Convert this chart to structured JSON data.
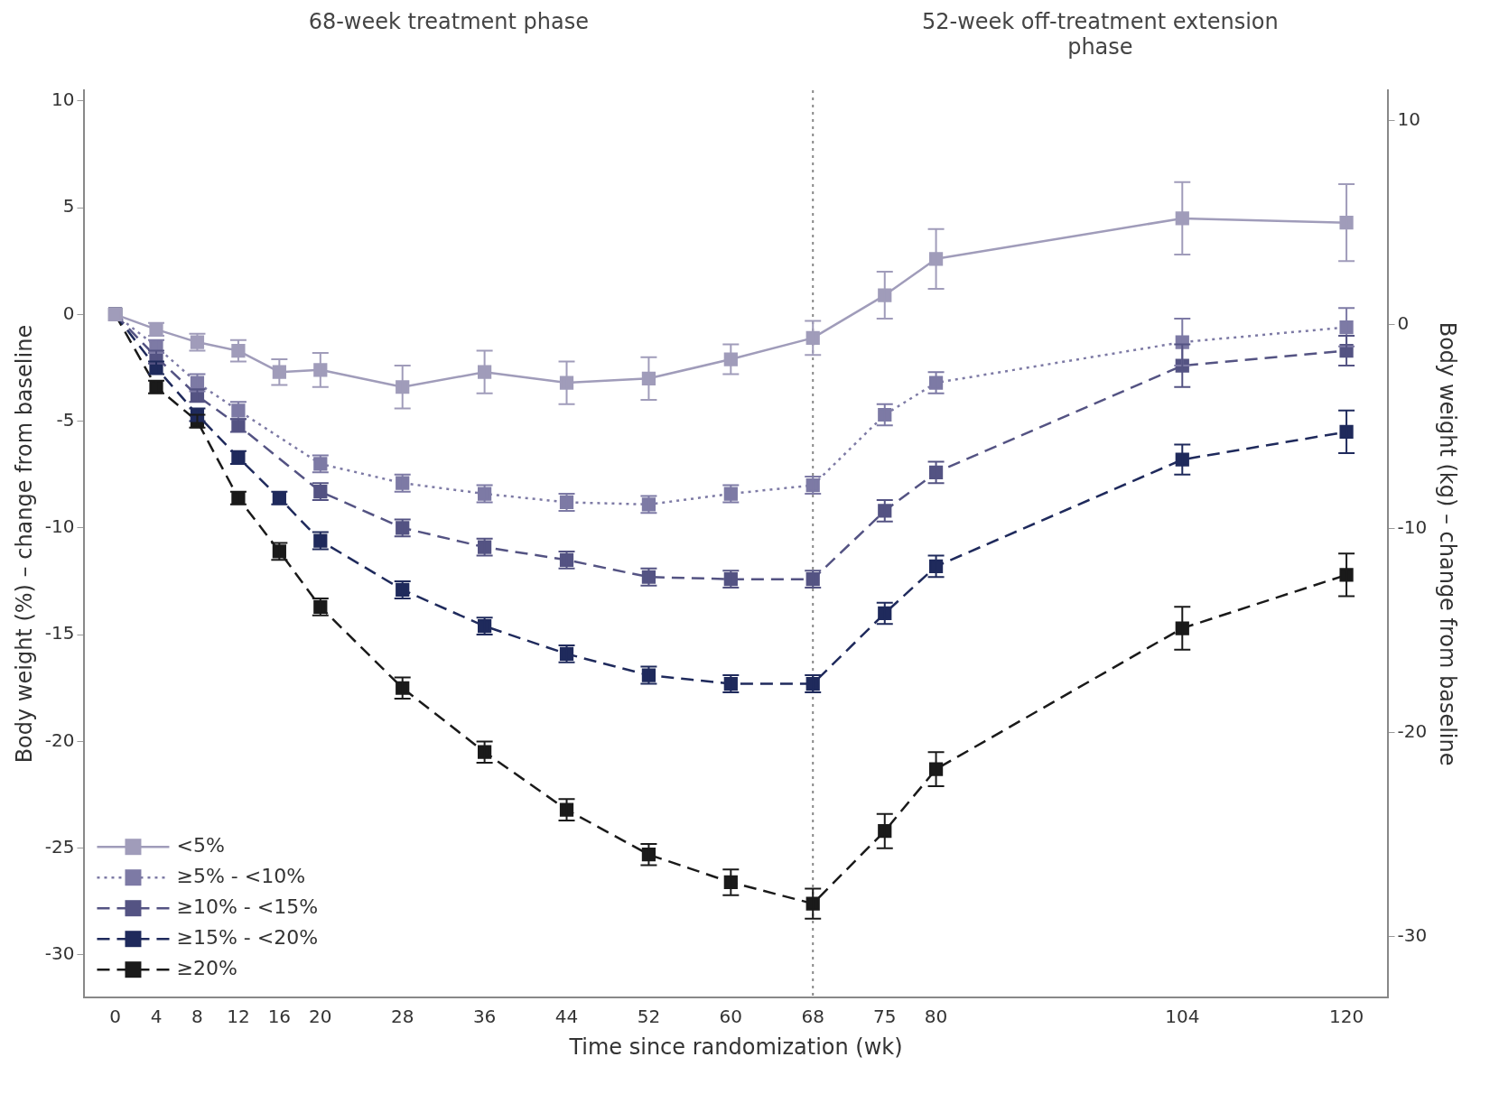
{
  "chart_data": {
    "type": "line",
    "xlabel": "Time since randomization (wk)",
    "ylabel": "Body weight (%) – change from baseline",
    "y2label": "Body weight (kg) – change from baseline",
    "annotations": [
      "68-week treatment phase",
      "52-week off-treatment extension phase"
    ],
    "x": [
      0,
      4,
      8,
      12,
      16,
      20,
      28,
      36,
      44,
      52,
      60,
      68,
      75,
      80,
      104,
      120
    ],
    "xlim": [
      -3,
      124
    ],
    "xticks": [
      0,
      4,
      8,
      12,
      16,
      20,
      28,
      36,
      44,
      52,
      60,
      68,
      75,
      80,
      104,
      120
    ],
    "ylim": [
      -32,
      10.5
    ],
    "yticks": [
      -30,
      -25,
      -20,
      -15,
      -10,
      -5,
      0,
      5,
      10
    ],
    "y2lim": [
      -33,
      11.5
    ],
    "y2ticks": [
      -30,
      -20,
      -10,
      0,
      10
    ],
    "grid": false,
    "legend": "bottom left",
    "marker": "square",
    "ref_lines": [
      {
        "axis": "x",
        "value": 68,
        "color": "#888888",
        "line_style": "dotted"
      }
    ],
    "series": [
      {
        "name": "<5%",
        "color": "#a09cba",
        "line_style": "solid",
        "values": [
          0,
          -0.7,
          -1.3,
          -1.7,
          -2.7,
          -2.6,
          -3.4,
          -2.7,
          -3.2,
          -3.0,
          -2.1,
          -1.1,
          0.9,
          2.6,
          4.5,
          4.3
        ],
        "errors": [
          null,
          0.3,
          0.4,
          0.5,
          0.6,
          0.8,
          1.0,
          1.0,
          1.0,
          1.0,
          0.7,
          0.8,
          1.1,
          1.4,
          1.7,
          1.8
        ]
      },
      {
        "name": "≥5% - <10%",
        "color": "#7d7aa5",
        "line_style": "dotted",
        "x": [
          0,
          4,
          8,
          12,
          20,
          28,
          36,
          44,
          52,
          60,
          68,
          75,
          80,
          104,
          120
        ],
        "values": [
          0,
          -1.5,
          -3.2,
          -4.5,
          -7.0,
          -7.9,
          -8.4,
          -8.8,
          -8.9,
          -8.4,
          -8.0,
          -4.7,
          -3.2,
          -1.3,
          -0.6
        ],
        "errors": [
          null,
          0.3,
          0.4,
          0.4,
          0.4,
          0.4,
          0.4,
          0.4,
          0.4,
          0.4,
          0.4,
          0.5,
          0.5,
          1.1,
          0.9
        ]
      },
      {
        "name": "≥10% - <15%",
        "color": "#545383",
        "line_style": "dashed",
        "x": [
          0,
          4,
          8,
          12,
          20,
          28,
          36,
          44,
          52,
          60,
          68,
          75,
          80,
          104,
          120
        ],
        "values": [
          0,
          -2.0,
          -3.8,
          -5.2,
          -8.3,
          -10.0,
          -10.9,
          -11.5,
          -12.3,
          -12.4,
          -12.4,
          -9.2,
          -7.4,
          -2.4,
          -1.7
        ],
        "errors": [
          null,
          0.3,
          0.3,
          0.3,
          0.4,
          0.4,
          0.4,
          0.4,
          0.4,
          0.4,
          0.4,
          0.5,
          0.5,
          1.0,
          0.7
        ]
      },
      {
        "name": "≥15% - <20%",
        "color": "#1f2a5c",
        "line_style": "dashed",
        "values": [
          0,
          -2.5,
          -4.7,
          -6.7,
          -8.6,
          -10.6,
          -12.9,
          -14.6,
          -15.9,
          -16.9,
          -17.3,
          -17.3,
          -14.0,
          -11.8,
          -6.8,
          -5.5
        ],
        "errors": [
          null,
          0.3,
          0.3,
          0.3,
          0.3,
          0.4,
          0.4,
          0.4,
          0.4,
          0.4,
          0.4,
          0.4,
          0.5,
          0.5,
          0.7,
          1.0
        ]
      },
      {
        "name": "≥20%",
        "color": "#1a1a1a",
        "line_style": "dashed",
        "values": [
          0,
          -3.4,
          -5.0,
          -8.6,
          -11.1,
          -13.7,
          -17.5,
          -20.5,
          -23.2,
          -25.3,
          -26.6,
          -27.6,
          -24.2,
          -21.3,
          -14.7,
          -12.2
        ],
        "errors": [
          null,
          0.3,
          0.3,
          0.3,
          0.4,
          0.4,
          0.5,
          0.5,
          0.5,
          0.5,
          0.6,
          0.7,
          0.8,
          0.8,
          1.0,
          1.0
        ]
      }
    ]
  }
}
